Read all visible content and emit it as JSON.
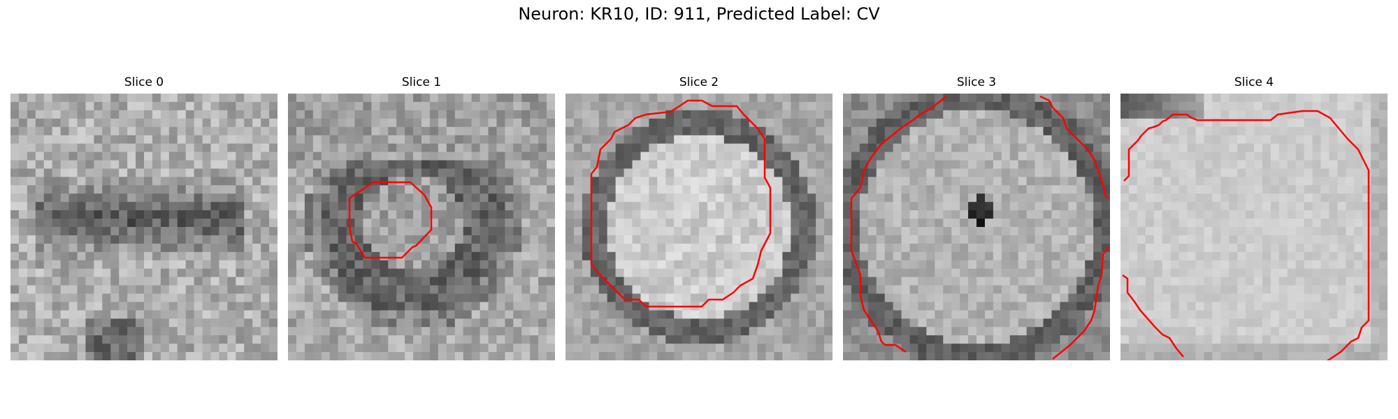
{
  "figure": {
    "title": "Neuron: KR10, ID: 911, Predicted Label: CV",
    "outline_color": "#ff0000",
    "colormap": "grayscale",
    "panels": [
      {
        "title": "Slice 0",
        "has_outline": false
      },
      {
        "title": "Slice 1",
        "has_outline": true
      },
      {
        "title": "Slice 2",
        "has_outline": true
      },
      {
        "title": "Slice 3",
        "has_outline": true
      },
      {
        "title": "Slice 4",
        "has_outline": true
      }
    ]
  }
}
